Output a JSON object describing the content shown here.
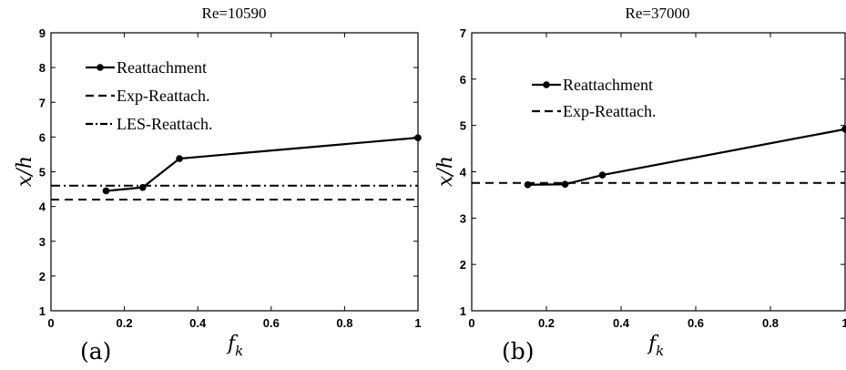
{
  "chart_data": [
    {
      "type": "line",
      "title": "Re=10590",
      "xlabel": "f_k",
      "ylabel": "x/h",
      "panel_label": "(a)",
      "xlim": [
        0,
        1
      ],
      "ylim": [
        1,
        9
      ],
      "xticks": [
        "0",
        "0.2",
        "0.4",
        "0.6",
        "0.8",
        "1"
      ],
      "yticks": [
        "1",
        "2",
        "3",
        "4",
        "5",
        "6",
        "7",
        "8",
        "9"
      ],
      "legend_position": "top-left",
      "series": [
        {
          "name": "Reattachment",
          "style": "solid-marker",
          "x": [
            0.15,
            0.25,
            0.35,
            1.0
          ],
          "y": [
            4.45,
            4.55,
            5.38,
            5.98
          ]
        },
        {
          "name": "Exp-Reattach.",
          "style": "dashed",
          "y_const": 4.2
        },
        {
          "name": "LES-Reattach.",
          "style": "dashdot",
          "y_const": 4.6
        }
      ]
    },
    {
      "type": "line",
      "title": "Re=37000",
      "xlabel": "f_k",
      "ylabel": "x/h",
      "panel_label": "(b)",
      "xlim": [
        0,
        1
      ],
      "ylim": [
        1,
        7
      ],
      "xticks": [
        "0",
        "0.2",
        "0.4",
        "0.6",
        "0.8",
        "1"
      ],
      "yticks": [
        "1",
        "2",
        "3",
        "4",
        "5",
        "6",
        "7"
      ],
      "legend_position": "top-left",
      "series": [
        {
          "name": "Reattachment",
          "style": "solid-marker",
          "x": [
            0.15,
            0.25,
            0.35,
            1.0
          ],
          "y": [
            3.72,
            3.73,
            3.93,
            4.92
          ]
        },
        {
          "name": "Exp-Reattach.",
          "style": "dashed",
          "y_const": 3.76
        }
      ]
    }
  ]
}
